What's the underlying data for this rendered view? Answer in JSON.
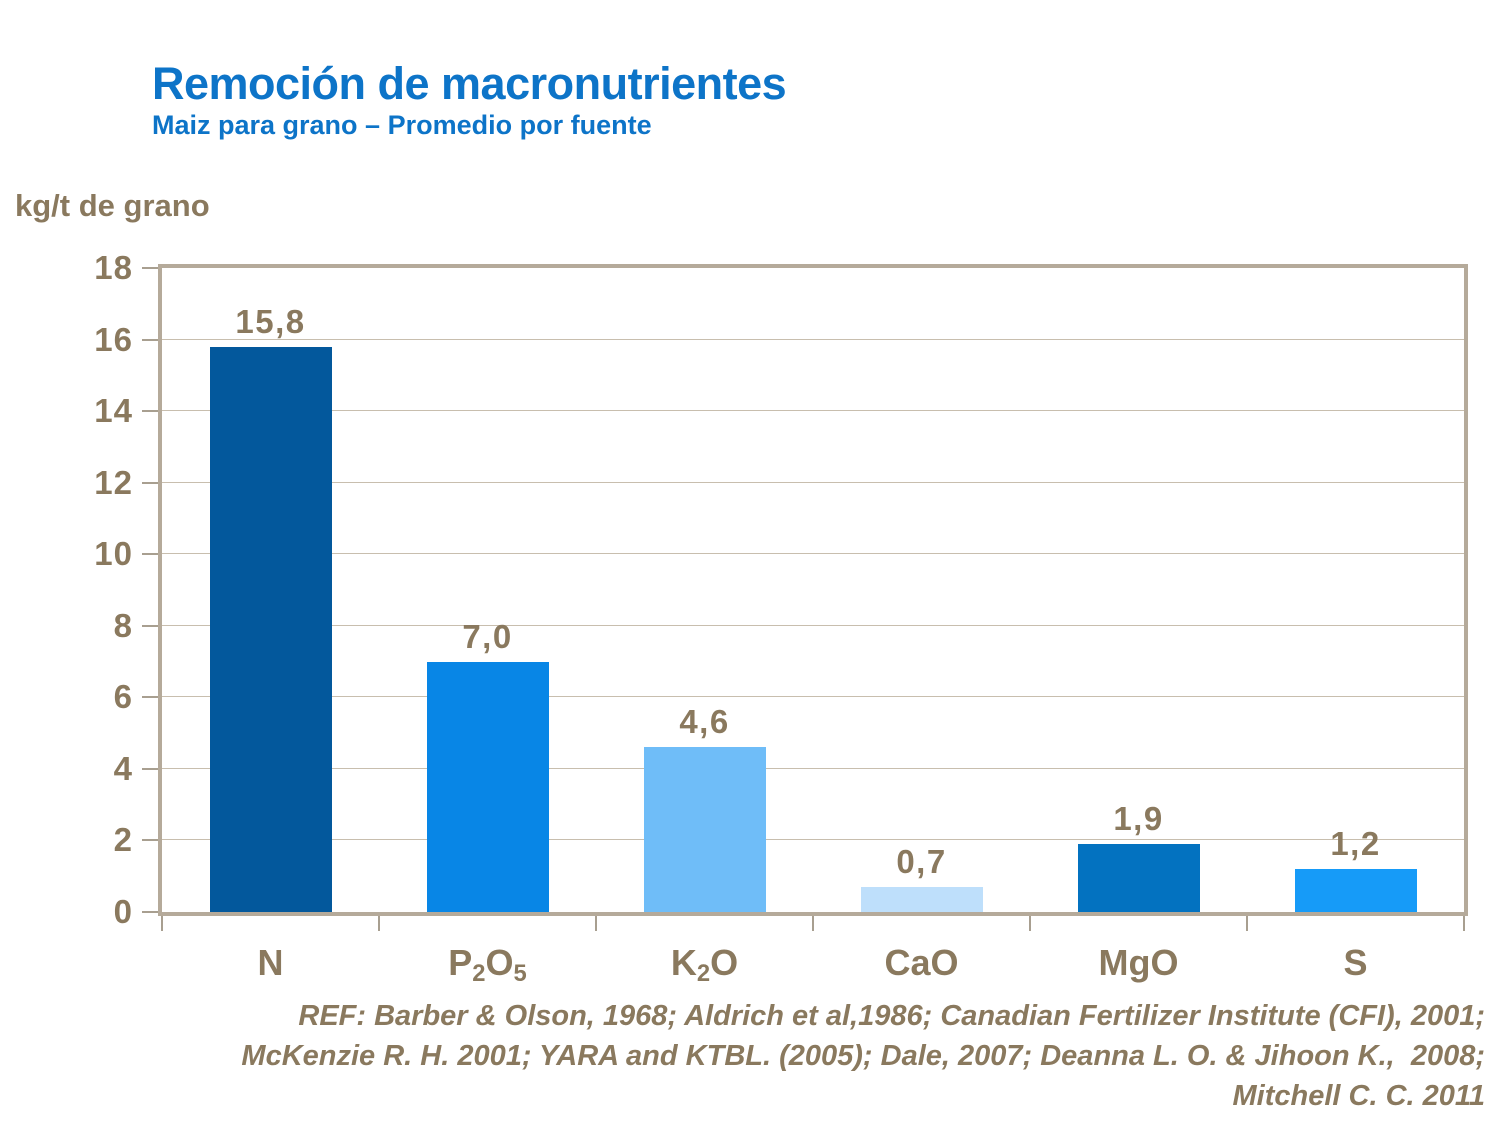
{
  "header": {
    "title": "Remoción de macronutrientes",
    "subtitle": "Maiz para grano – Promedio por fuente"
  },
  "chart_data": {
    "type": "bar",
    "title": "Remoción de macronutrientes",
    "subtitle": "Maiz para grano – Promedio por fuente",
    "ylabel": "kg/t de grano",
    "xlabel": "",
    "categories": [
      "N",
      "P₂O₅",
      "K₂O",
      "CaO",
      "MgO",
      "S"
    ],
    "values": [
      15.8,
      7.0,
      4.6,
      0.7,
      1.9,
      1.2
    ],
    "value_labels": [
      "15,8",
      "7,0",
      "4,6",
      "0,7",
      "1,9",
      "1,2"
    ],
    "bar_colors": [
      "#03589c",
      "#0886e6",
      "#6fbdf8",
      "#bedffb",
      "#0372c0",
      "#169bf8"
    ],
    "ylim": [
      0,
      18
    ],
    "ytick_step": 2,
    "ytick_labels": [
      "0",
      "2",
      "4",
      "6",
      "8",
      "10",
      "12",
      "14",
      "16",
      "18"
    ],
    "grid": true,
    "legend": false
  },
  "footer": {
    "reference_lines": [
      "REF: Barber & Olson, 1968; Aldrich et al,1986; Canadian Fertilizer Institute (CFI), 2001;",
      "McKenzie R. H. 2001; YARA and KTBL. (2005); Dale, 2007; Deanna L. O. & Jihoon K.,  2008;",
      "Mitchell C. C. 2011"
    ]
  },
  "colors": {
    "title_blue": "#0d74c8",
    "text_brown": "#8a795e",
    "plot_frame": "#b5aa9a",
    "gridline": "#c8beae",
    "tick": "#a89f90",
    "background": "#ffffff"
  }
}
